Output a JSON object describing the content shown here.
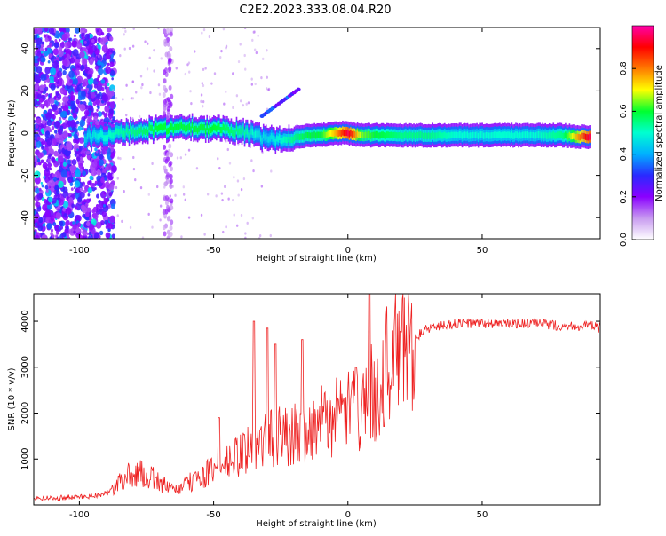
{
  "title": "C2E2.2023.333.08.04.R20",
  "colors": {
    "snr_line": "#ee2222",
    "axis": "#000000",
    "colormap": [
      "#ffffff",
      "#c89bf0",
      "#8a00ff",
      "#2a2aff",
      "#00b0ff",
      "#00ffd0",
      "#00ff30",
      "#ffff00",
      "#ff7a00",
      "#ff0000",
      "#ff00a8"
    ]
  },
  "chart_data": [
    {
      "type": "heatmap",
      "xlabel": "Height of straight line (km)",
      "ylabel": "Frequency (Hz)",
      "xlim": [
        -117,
        94
      ],
      "ylim": [
        -50,
        50
      ],
      "x_ticks": [
        -100,
        -50,
        0,
        50
      ],
      "x_tick_labels": [
        "-100",
        "-50",
        "0",
        "50"
      ],
      "y_ticks": [
        -40,
        -20,
        0,
        20,
        40
      ],
      "y_tick_labels": [
        "-40",
        "-20",
        "0",
        "20",
        "40"
      ],
      "colorbar": {
        "label": "Normalized spectral amplitude",
        "range": [
          0,
          1
        ],
        "ticks": [
          0.0,
          0.2,
          0.4,
          0.6,
          0.8
        ],
        "tick_labels": [
          "0.0",
          "0.2",
          "0.4",
          "0.6",
          "0.8"
        ]
      },
      "ridge": {
        "x": [
          -98,
          -90,
          -80,
          -70,
          -60,
          -50,
          -40,
          -35,
          -30,
          -25,
          -20,
          -15,
          -10,
          -5,
          0,
          5,
          10,
          20,
          30,
          40,
          50,
          60,
          70,
          80,
          90
        ],
        "freq_hz": [
          -2,
          -1,
          1,
          2,
          3,
          2,
          1,
          -1,
          -3,
          -3,
          -2,
          -1,
          -1,
          0,
          0,
          -1,
          -1,
          -1,
          -1,
          -1,
          -1,
          -1,
          -1,
          -1,
          -2
        ],
        "amplitude": [
          0.45,
          0.5,
          0.55,
          0.6,
          0.6,
          0.6,
          0.55,
          0.5,
          0.45,
          0.5,
          0.55,
          0.6,
          0.6,
          0.75,
          0.95,
          0.65,
          0.6,
          0.55,
          0.55,
          0.5,
          0.5,
          0.5,
          0.5,
          0.55,
          0.95
        ]
      }
    },
    {
      "type": "line",
      "xlabel": "Height of straight line (km)",
      "ylabel": "SNR (10 * v/v)",
      "xlim": [
        -117,
        94
      ],
      "ylim": [
        0,
        4600
      ],
      "x_ticks": [
        -100,
        -50,
        0,
        50
      ],
      "x_tick_labels": [
        "-100",
        "-50",
        "0",
        "50"
      ],
      "y_ticks": [
        1000,
        2000,
        3000,
        4000
      ],
      "y_tick_labels": [
        "1000",
        "2000",
        "3000",
        "4000"
      ],
      "series": [
        {
          "x": [
            -117,
            -110,
            -100,
            -95,
            -90,
            -87,
            -85,
            -80,
            -75,
            -70,
            -65,
            -60,
            -55,
            -50,
            -45,
            -40,
            -35,
            -30,
            -25,
            -20,
            -15,
            -10,
            -5,
            0,
            5,
            8,
            10,
            12,
            15,
            20,
            25,
            30,
            35,
            40,
            50,
            60,
            70,
            80,
            90,
            94
          ],
          "values": [
            150,
            150,
            180,
            200,
            250,
            350,
            500,
            700,
            650,
            500,
            300,
            450,
            600,
            750,
            900,
            1100,
            1300,
            1450,
            1500,
            1550,
            1650,
            1800,
            1900,
            2000,
            2150,
            2500,
            2300,
            2700,
            3100,
            3400,
            3650,
            3850,
            3900,
            3950,
            3950,
            3950,
            3950,
            3900,
            3900,
            3850
          ],
          "spikes": [
            {
              "x": -35,
              "value": 4000
            },
            {
              "x": -30,
              "value": 3850
            },
            {
              "x": -27,
              "value": 3500
            },
            {
              "x": -17,
              "value": 3600
            },
            {
              "x": 8,
              "value": 4600
            },
            {
              "x": 3,
              "value": 3000
            },
            {
              "x": -48,
              "value": 1900
            }
          ]
        }
      ]
    }
  ]
}
